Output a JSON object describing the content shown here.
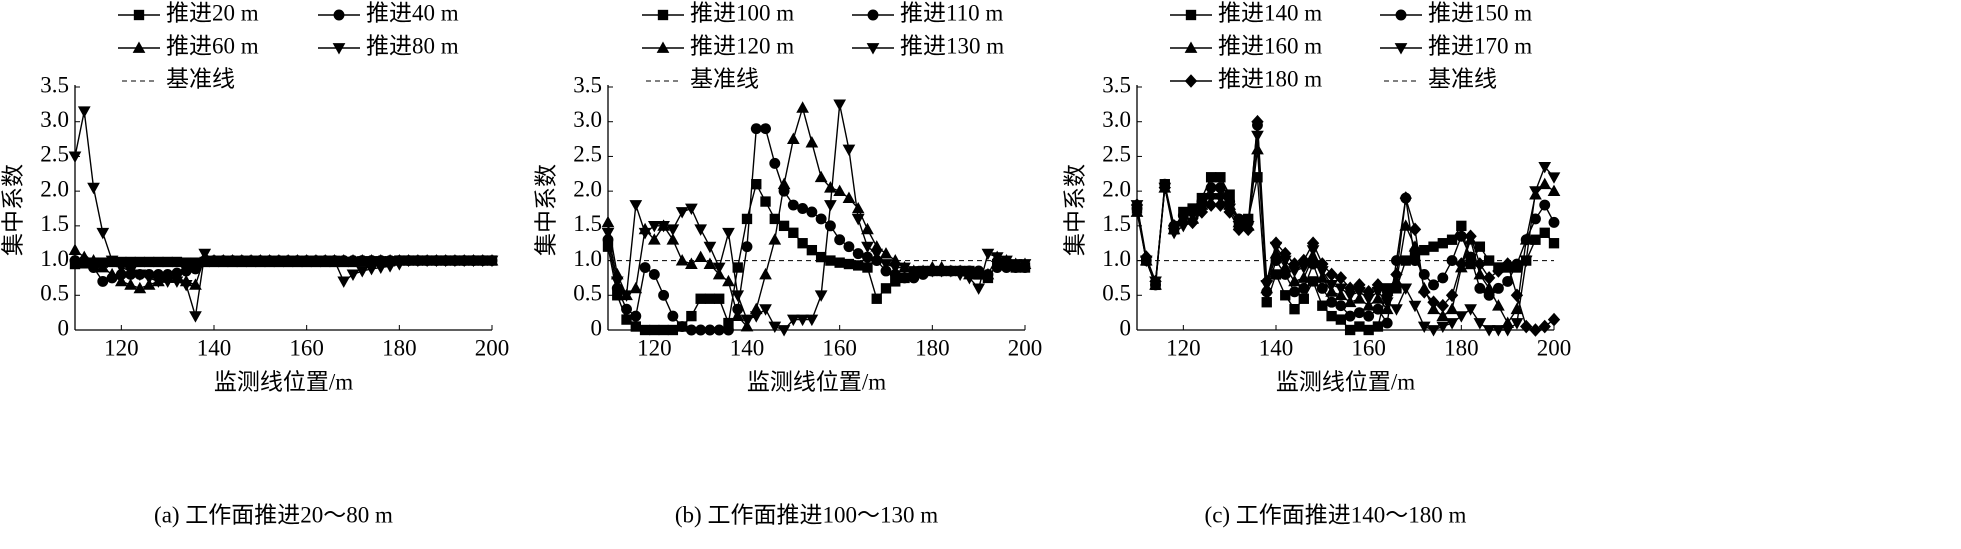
{
  "chart_data": [
    {
      "type": "line",
      "title": "(a)  工作面推进20～80 m",
      "xlabel": "监测线位置/m",
      "ylabel": "集中系数",
      "x": [
        110,
        112,
        114,
        116,
        118,
        120,
        122,
        124,
        126,
        128,
        130,
        132,
        134,
        136,
        138,
        140,
        142,
        144,
        146,
        148,
        150,
        152,
        154,
        156,
        158,
        160,
        162,
        164,
        166,
        168,
        170,
        172,
        174,
        176,
        178,
        180,
        182,
        184,
        186,
        188,
        190,
        192,
        194,
        196,
        198,
        200
      ],
      "xlim": [
        110,
        200
      ],
      "ylim": [
        0,
        3.5
      ],
      "xticks": [
        120,
        140,
        160,
        180,
        200
      ],
      "yticks": [
        0,
        0.5,
        {
          "value": 1,
          "label": "1.0"
        },
        1.5,
        {
          "value": 2,
          "label": "2.0"
        },
        2.5,
        {
          "value": 3,
          "label": "3.0"
        },
        3.5
      ],
      "baseline": {
        "name": "基准线",
        "value": 1
      },
      "series": [
        {
          "name": "推进20 m",
          "marker": "square",
          "color": "#000000",
          "values": [
            0.95,
            0.96,
            0.97,
            0.97,
            0.98,
            0.98,
            0.98,
            0.98,
            0.98,
            0.98,
            0.98,
            0.98,
            0.97,
            0.97,
            0.98,
            0.98,
            0.98,
            0.98,
            0.98,
            0.98,
            0.98,
            0.98,
            0.98,
            0.98,
            0.98,
            0.98,
            0.98,
            0.98,
            0.98,
            0.98,
            0.98,
            0.99,
            0.99,
            0.99,
            0.99,
            1.0,
            1.0,
            1.0,
            1.0,
            1.0,
            1.0,
            1.0,
            1.0,
            1.0,
            1.0,
            1.0
          ]
        },
        {
          "name": "推进40 m",
          "marker": "circle",
          "color": "#000000",
          "values": [
            1.0,
            1.0,
            0.9,
            0.7,
            0.75,
            0.8,
            0.8,
            0.8,
            0.8,
            0.8,
            0.8,
            0.82,
            0.85,
            0.88,
            1.0,
            1.0,
            1.0,
            1.0,
            1.0,
            1.0,
            1.0,
            1.0,
            1.0,
            1.0,
            1.0,
            1.0,
            1.0,
            1.0,
            1.0,
            1.0,
            1.0,
            1.0,
            1.0,
            1.0,
            1.0,
            1.0,
            1.0,
            1.0,
            1.0,
            1.0,
            1.0,
            1.0,
            1.0,
            1.0,
            1.0,
            1.0
          ]
        },
        {
          "name": "推进60 m",
          "marker": "triangle",
          "color": "#000000",
          "values": [
            1.15,
            1.05,
            1.0,
            0.9,
            0.8,
            0.7,
            0.65,
            0.6,
            0.65,
            0.7,
            0.75,
            0.75,
            0.7,
            0.65,
            1.05,
            1.0,
            1.0,
            1.0,
            1.0,
            1.0,
            1.0,
            1.0,
            1.0,
            1.0,
            1.0,
            1.0,
            1.0,
            1.0,
            1.0,
            1.0,
            1.0,
            1.0,
            1.0,
            1.0,
            1.0,
            1.0,
            1.0,
            1.0,
            1.0,
            1.0,
            1.0,
            1.0,
            1.0,
            1.0,
            1.0,
            1.0
          ]
        },
        {
          "name": "推进80 m",
          "marker": "triangle-down",
          "color": "#000000",
          "values": [
            2.5,
            3.15,
            2.05,
            1.4,
            1.0,
            0.9,
            0.85,
            0.8,
            0.75,
            0.7,
            0.7,
            0.7,
            0.65,
            0.2,
            1.1,
            1.0,
            1.0,
            1.0,
            1.0,
            1.0,
            1.0,
            1.0,
            1.0,
            1.0,
            1.0,
            1.0,
            1.0,
            1.0,
            1.0,
            0.7,
            0.8,
            0.85,
            0.88,
            0.9,
            0.92,
            0.95,
            1.0,
            1.0,
            1.0,
            1.0,
            1.0,
            1.0,
            1.0,
            1.0,
            1.0,
            1.0
          ]
        }
      ]
    },
    {
      "type": "line",
      "title": "(b)  工作面推进100～130 m",
      "xlabel": "监测线位置/m",
      "ylabel": "集中系数",
      "x": [
        110,
        112,
        114,
        116,
        118,
        120,
        122,
        124,
        126,
        128,
        130,
        132,
        134,
        136,
        138,
        140,
        142,
        144,
        146,
        148,
        150,
        152,
        154,
        156,
        158,
        160,
        162,
        164,
        166,
        168,
        170,
        172,
        174,
        176,
        178,
        180,
        182,
        184,
        186,
        188,
        190,
        192,
        194,
        196,
        198,
        200
      ],
      "xlim": [
        110,
        200
      ],
      "ylim": [
        0,
        3.5
      ],
      "xticks": [
        120,
        140,
        160,
        180,
        200
      ],
      "yticks": [
        0,
        0.5,
        {
          "value": 1,
          "label": "1.0"
        },
        1.5,
        {
          "value": 2,
          "label": "2.0"
        },
        2.5,
        {
          "value": 3,
          "label": "3.0"
        },
        3.5
      ],
      "baseline": {
        "name": "基准线",
        "value": 1
      },
      "series": [
        {
          "name": "推进100 m",
          "marker": "square",
          "color": "#000000",
          "values": [
            1.2,
            0.5,
            0.15,
            0.05,
            0,
            0,
            0,
            0,
            0.05,
            0.2,
            0.45,
            0.45,
            0.45,
            0.1,
            0.9,
            1.6,
            2.1,
            1.85,
            1.6,
            1.5,
            1.4,
            1.25,
            1.15,
            1.05,
            1.0,
            0.97,
            0.95,
            0.93,
            0.9,
            0.45,
            0.6,
            0.7,
            0.75,
            0.8,
            0.85,
            0.85,
            0.85,
            0.85,
            0.85,
            0.85,
            0.8,
            0.75,
            0.95,
            0.95,
            0.9,
            0.9
          ]
        },
        {
          "name": "推进110 m",
          "marker": "circle",
          "color": "#000000",
          "values": [
            1.3,
            0.6,
            0.3,
            0.2,
            0.9,
            0.8,
            0.5,
            0.2,
            0.05,
            0,
            0,
            0,
            0,
            0,
            0.3,
            1.2,
            2.9,
            2.9,
            2.4,
            2.0,
            1.8,
            1.75,
            1.7,
            1.6,
            1.5,
            1.3,
            1.2,
            1.1,
            1.05,
            1.0,
            0.85,
            0.8,
            0.75,
            0.75,
            0.8,
            0.85,
            0.85,
            0.85,
            0.85,
            0.85,
            0.85,
            0.8,
            0.9,
            0.9,
            0.9,
            0.9
          ]
        },
        {
          "name": "推进120 m",
          "marker": "triangle",
          "color": "#000000",
          "values": [
            1.55,
            0.8,
            0.5,
            0.6,
            1.45,
            1.3,
            1.5,
            1.3,
            1.0,
            0.95,
            1.05,
            0.95,
            0.8,
            0.7,
            0.2,
            0.05,
            0.3,
            0.8,
            1.3,
            2.1,
            2.75,
            3.2,
            2.7,
            2.2,
            2.05,
            2.0,
            1.9,
            1.75,
            1.45,
            1.2,
            1.1,
            1.0,
            0.9,
            0.85,
            0.85,
            0.9,
            0.9,
            0.85,
            0.85,
            0.8,
            0.8,
            0.8,
            1.05,
            1.0,
            0.95,
            0.95
          ]
        },
        {
          "name": "推进130 m",
          "marker": "triangle-down",
          "color": "#000000",
          "values": [
            1.4,
            0.7,
            0.5,
            1.8,
            1.4,
            1.5,
            1.5,
            1.45,
            1.7,
            1.75,
            1.45,
            1.2,
            0.9,
            1.4,
            0.5,
            0.15,
            0.2,
            0.3,
            0.05,
            0,
            0.15,
            0.15,
            0.15,
            0.5,
            1.8,
            3.25,
            2.6,
            1.6,
            1.2,
            1.1,
            0.95,
            0.9,
            0.9,
            0.85,
            0.85,
            0.85,
            0.85,
            0.85,
            0.8,
            0.75,
            0.6,
            1.1,
            1.05,
            1.0,
            0.95,
            0.95
          ]
        }
      ]
    },
    {
      "type": "line",
      "title": "(c)  工作面推进140～180 m",
      "xlabel": "监测线位置/m",
      "ylabel": "集中系数",
      "x": [
        110,
        112,
        114,
        116,
        118,
        120,
        122,
        124,
        126,
        128,
        130,
        132,
        134,
        136,
        138,
        140,
        142,
        144,
        146,
        148,
        150,
        152,
        154,
        156,
        158,
        160,
        162,
        164,
        166,
        168,
        170,
        172,
        174,
        176,
        178,
        180,
        182,
        184,
        186,
        188,
        190,
        192,
        194,
        196,
        198,
        200
      ],
      "xlim": [
        110,
        200
      ],
      "ylim": [
        0,
        3.5
      ],
      "xticks": [
        120,
        140,
        160,
        180,
        200
      ],
      "yticks": [
        0,
        0.5,
        {
          "value": 1,
          "label": "1.0"
        },
        1.5,
        {
          "value": 2,
          "label": "2.0"
        },
        2.5,
        {
          "value": 3,
          "label": "3.0"
        },
        3.5
      ],
      "baseline": {
        "name": "基准线",
        "value": 1
      },
      "series": [
        {
          "name": "推进140 m",
          "marker": "square",
          "color": "#000000",
          "values": [
            1.75,
            1.0,
            0.65,
            2.1,
            1.45,
            1.7,
            1.75,
            1.9,
            2.2,
            2.2,
            1.95,
            1.5,
            1.6,
            2.2,
            0.4,
            0.8,
            0.5,
            0.3,
            0.45,
            0.7,
            0.35,
            0.2,
            0.15,
            0.0,
            0.05,
            0.0,
            0.05,
            0.6,
            0.6,
            1.0,
            1.1,
            1.15,
            1.2,
            1.25,
            1.3,
            1.5,
            0.95,
            1.2,
            1.0,
            0.9,
            0.9,
            0.9,
            1.0,
            1.3,
            1.4,
            1.25
          ]
        },
        {
          "name": "推进150 m",
          "marker": "circle",
          "color": "#000000",
          "values": [
            1.75,
            1.0,
            0.65,
            2.1,
            1.5,
            1.65,
            1.7,
            1.85,
            2.05,
            2.05,
            1.85,
            1.6,
            1.55,
            2.95,
            0.55,
            1.0,
            0.8,
            0.55,
            0.6,
            0.95,
            0.6,
            0.4,
            0.35,
            0.2,
            0.25,
            0.2,
            0.3,
            0.1,
            1.0,
            1.9,
            1.0,
            0.8,
            0.65,
            0.75,
            1.0,
            1.35,
            1.05,
            0.6,
            0.5,
            0.6,
            0.7,
            0.95,
            1.3,
            1.6,
            1.8,
            1.55
          ]
        },
        {
          "name": "推进160 m",
          "marker": "triangle",
          "color": "#000000",
          "values": [
            1.7,
            1.0,
            0.65,
            2.05,
            1.45,
            1.6,
            1.6,
            1.8,
            1.95,
            1.95,
            1.8,
            1.55,
            1.5,
            2.6,
            0.6,
            1.1,
            0.9,
            0.7,
            0.75,
            1.05,
            0.75,
            0.55,
            0.5,
            0.4,
            0.45,
            0.35,
            0.45,
            0.3,
            0.7,
            1.5,
            1.2,
            0.6,
            0.3,
            0.2,
            0.3,
            0.9,
            1.3,
            0.8,
            0.6,
            0.35,
            0.1,
            0.3,
            1.3,
            1.95,
            2.1,
            2.0
          ]
        },
        {
          "name": "推进170 m",
          "marker": "triangle-down",
          "color": "#000000",
          "values": [
            1.8,
            1.0,
            0.7,
            2.05,
            1.4,
            1.5,
            1.55,
            1.75,
            1.9,
            1.9,
            1.75,
            1.5,
            1.5,
            2.8,
            0.65,
            1.2,
            1.0,
            0.85,
            0.9,
            1.15,
            0.85,
            0.65,
            0.6,
            0.5,
            0.55,
            0.45,
            0.55,
            0.4,
            0.3,
            0.6,
            0.35,
            0.05,
            0.0,
            0.05,
            0.1,
            0.2,
            0.3,
            0.1,
            0.0,
            0.0,
            0.0,
            0.1,
            1.0,
            2.0,
            2.35,
            2.2
          ]
        },
        {
          "name": "推进180 m",
          "marker": "diamond",
          "color": "#000000",
          "values": [
            1.8,
            1.05,
            0.7,
            2.05,
            1.5,
            1.55,
            1.55,
            1.7,
            1.8,
            1.8,
            1.7,
            1.45,
            1.45,
            3.0,
            0.7,
            1.25,
            1.1,
            0.95,
            1.0,
            1.25,
            0.95,
            0.8,
            0.75,
            0.6,
            0.65,
            0.55,
            0.65,
            0.5,
            0.8,
            1.9,
            1.45,
            0.55,
            0.4,
            0.35,
            0.5,
            0.95,
            1.35,
            0.95,
            0.75,
            0.85,
            0.95,
            0.5,
            0.05,
            0.0,
            0.05,
            0.15
          ]
        }
      ]
    }
  ]
}
